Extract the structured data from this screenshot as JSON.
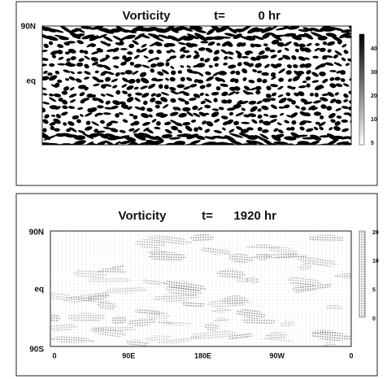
{
  "panels": [
    {
      "title": "Vorticity",
      "time_label": "t=",
      "time": "0 hr",
      "y_labels": [
        "90N",
        "eq"
      ],
      "colorbar_ticks": [
        40,
        30,
        20,
        10,
        5
      ]
    },
    {
      "title": "Vorticity",
      "time_label": "t=",
      "time": "1920 hr",
      "y_labels": [
        "90N",
        "eq",
        "90S"
      ],
      "x_labels": [
        "0",
        "90E",
        "180E",
        "90W",
        "0"
      ],
      "colorbar_ticks": [
        20,
        10,
        5,
        0
      ]
    }
  ]
}
